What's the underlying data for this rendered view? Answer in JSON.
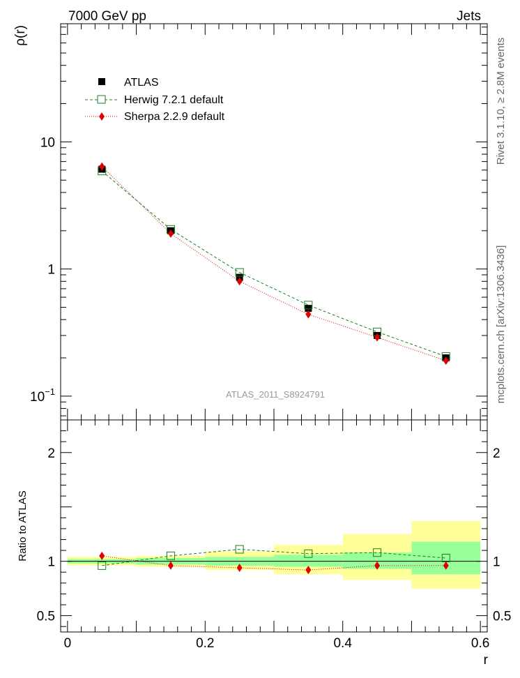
{
  "header": {
    "left_label": "7000 GeV pp",
    "right_label": "Jets"
  },
  "side_labels": {
    "rivet": "Rivet 3.1.10, ≥ 2.8M events",
    "mcplots": "mcplots.cern.ch [arXiv:1306.3436]"
  },
  "watermark": "ATLAS_2011_S8924791",
  "colors": {
    "atlas": "#000000",
    "herwig": "#1e7d1e",
    "sherpa": "#e00000",
    "band_inner": "#99ff99",
    "band_outer": "#ffff99"
  },
  "chart_data": [
    {
      "type": "scatter",
      "scale": "log",
      "ylabel": "ρ(r)",
      "xlim": [
        -0.01,
        0.61
      ],
      "ylim": [
        0.065,
        85
      ],
      "y_ticks": [
        {
          "value": 10,
          "label": "10"
        },
        {
          "value": 1,
          "label": "1"
        },
        {
          "value": 0.1,
          "label": "10",
          "sup": "−1"
        }
      ],
      "legend": {
        "placement": "top-left",
        "entries": [
          "ATLAS",
          "Herwig 7.2.1 default",
          "Sherpa 2.2.9 default"
        ]
      },
      "x": [
        0.05,
        0.15,
        0.25,
        0.35,
        0.45,
        0.55
      ],
      "series": [
        {
          "name": "ATLAS",
          "values": [
            6.1,
            2.0,
            0.86,
            0.49,
            0.3,
            0.2
          ]
        },
        {
          "name": "Herwig 7.2.1 default",
          "values": [
            5.9,
            2.05,
            0.94,
            0.52,
            0.32,
            0.205
          ]
        },
        {
          "name": "Sherpa 2.2.9 default",
          "values": [
            6.4,
            1.9,
            0.8,
            0.44,
            0.29,
            0.19
          ]
        }
      ]
    },
    {
      "type": "scatter",
      "ylabel": "Ratio to ATLAS",
      "xlabel": "r",
      "xlim": [
        -0.01,
        0.61
      ],
      "ylim": [
        0.35,
        2.3
      ],
      "x_ticks": [
        {
          "value": 0,
          "label": "0"
        },
        {
          "value": 0.2,
          "label": "0.2"
        },
        {
          "value": 0.4,
          "label": "0.4"
        },
        {
          "value": 0.6,
          "label": "0.6"
        }
      ],
      "y_ticks": [
        {
          "value": 2,
          "label": "2"
        },
        {
          "value": 1,
          "label": "1"
        },
        {
          "value": 0.5,
          "label": "0.5"
        }
      ],
      "bins": [
        {
          "lo": 0.0,
          "hi": 0.1,
          "inner": [
            0.98,
            1.02
          ],
          "outer": [
            0.96,
            1.04
          ]
        },
        {
          "lo": 0.1,
          "hi": 0.2,
          "inner": [
            0.97,
            1.03
          ],
          "outer": [
            0.95,
            1.05
          ]
        },
        {
          "lo": 0.2,
          "hi": 0.3,
          "inner": [
            0.96,
            1.04
          ],
          "outer": [
            0.92,
            1.09
          ]
        },
        {
          "lo": 0.3,
          "hi": 0.4,
          "inner": [
            0.95,
            1.06
          ],
          "outer": [
            0.88,
            1.15
          ]
        },
        {
          "lo": 0.4,
          "hi": 0.5,
          "inner": [
            0.93,
            1.08
          ],
          "outer": [
            0.83,
            1.25
          ]
        },
        {
          "lo": 0.5,
          "hi": 0.6,
          "inner": [
            0.88,
            1.18
          ],
          "outer": [
            0.75,
            1.37
          ]
        }
      ],
      "x": [
        0.05,
        0.15,
        0.25,
        0.35,
        0.45,
        0.55
      ],
      "series": [
        {
          "name": "Herwig 7.2.1 default",
          "values": [
            0.96,
            1.05,
            1.11,
            1.07,
            1.08,
            1.03
          ]
        },
        {
          "name": "Sherpa 2.2.9 default",
          "values": [
            1.05,
            0.96,
            0.94,
            0.92,
            0.96,
            0.96
          ]
        }
      ]
    }
  ]
}
